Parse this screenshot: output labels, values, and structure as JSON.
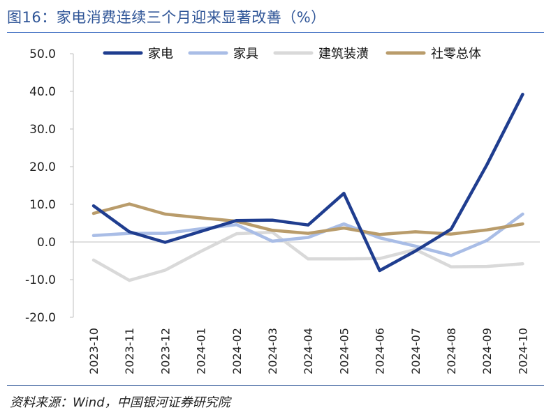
{
  "figure": {
    "title": "图16：家电消费连续三个月迎来显著改善（%）",
    "source": "资料来源：Wind，中国银河证券研究院"
  },
  "chart_data": {
    "type": "line",
    "categories": [
      "2023-10",
      "2023-11",
      "2023-12",
      "2024-01",
      "2024-02",
      "2024-03",
      "2024-04",
      "2024-05",
      "2024-06",
      "2024-07",
      "2024-08",
      "2024-09",
      "2024-10"
    ],
    "ylim": [
      -20,
      50
    ],
    "yticks": [
      "50.0",
      "40.0",
      "30.0",
      "20.0",
      "10.0",
      "0.0",
      "-10.0",
      "-20.0"
    ],
    "ytick_values": [
      50,
      40,
      30,
      20,
      10,
      0,
      -10,
      -20
    ],
    "grid": false,
    "legend_position": "top",
    "series": [
      {
        "name": "家电",
        "color": "#1f3d8f",
        "values": [
          9.6,
          2.7,
          -0.1,
          2.8,
          5.7,
          5.8,
          4.5,
          12.9,
          -7.6,
          -2.4,
          3.4,
          20.5,
          39.2
        ]
      },
      {
        "name": "家具",
        "color": "#a9bde6",
        "values": [
          1.7,
          2.3,
          2.3,
          3.5,
          4.6,
          0.2,
          1.2,
          4.8,
          1.1,
          -1.1,
          -3.6,
          0.4,
          7.4
        ]
      },
      {
        "name": "建筑装潢",
        "color": "#d9d9d9",
        "values": [
          -4.8,
          -10.2,
          -7.5,
          -2.5,
          2.2,
          2.6,
          -4.5,
          -4.5,
          -4.4,
          -2.0,
          -6.6,
          -6.5,
          -5.8
        ]
      },
      {
        "name": "社零总体",
        "color": "#b99c6b",
        "values": [
          7.6,
          10.1,
          7.4,
          6.4,
          5.5,
          3.1,
          2.3,
          3.7,
          2.0,
          2.7,
          2.1,
          3.2,
          4.8
        ]
      }
    ]
  }
}
